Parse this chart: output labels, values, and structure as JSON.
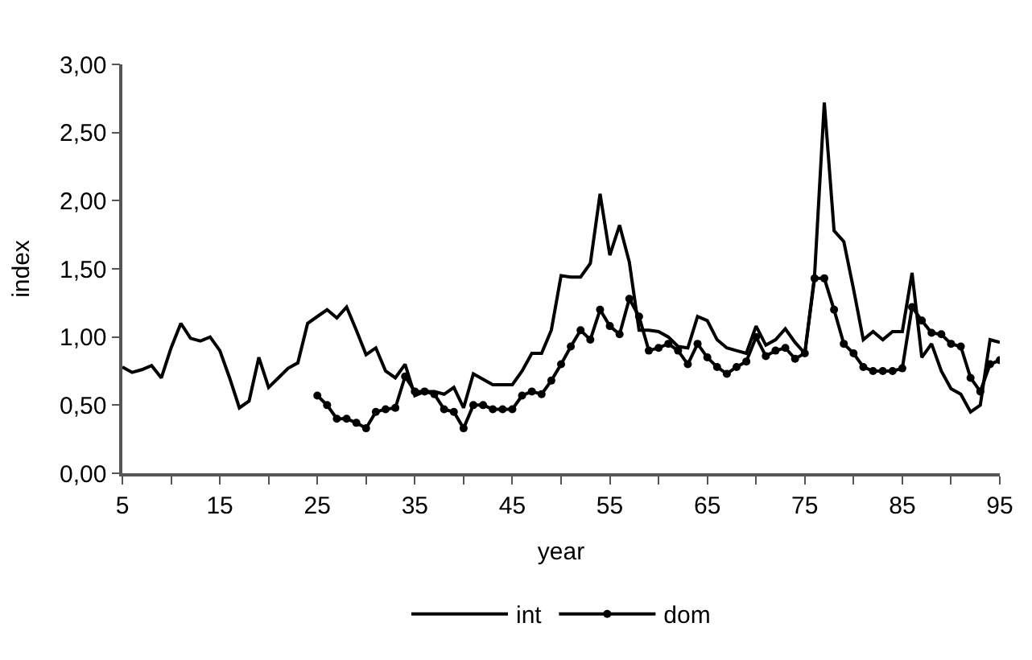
{
  "chart_data": {
    "type": "line",
    "xlabel": "year",
    "ylabel": "index",
    "x": [
      5,
      6,
      7,
      8,
      9,
      10,
      11,
      12,
      13,
      14,
      15,
      16,
      17,
      18,
      19,
      20,
      21,
      22,
      23,
      24,
      25,
      26,
      27,
      28,
      29,
      30,
      31,
      32,
      33,
      34,
      35,
      36,
      37,
      38,
      39,
      40,
      41,
      42,
      43,
      44,
      45,
      46,
      47,
      48,
      49,
      50,
      51,
      52,
      53,
      54,
      55,
      56,
      57,
      58,
      59,
      60,
      61,
      62,
      63,
      64,
      65,
      66,
      67,
      68,
      69,
      70,
      71,
      72,
      73,
      74,
      75,
      76,
      77,
      78,
      79,
      80,
      81,
      82,
      83,
      84,
      85,
      86,
      87,
      88,
      89,
      90,
      91,
      92,
      93,
      94,
      95
    ],
    "series": [
      {
        "name": "int",
        "color": "#000000",
        "marker": "none",
        "values": [
          0.78,
          0.74,
          0.76,
          0.79,
          0.7,
          0.92,
          1.1,
          0.99,
          0.97,
          1.0,
          0.9,
          0.7,
          0.48,
          0.53,
          0.85,
          0.63,
          0.7,
          0.77,
          0.81,
          1.1,
          1.15,
          1.2,
          1.14,
          1.22,
          1.05,
          0.87,
          0.92,
          0.75,
          0.7,
          0.8,
          0.57,
          0.6,
          0.6,
          0.58,
          0.63,
          0.48,
          0.73,
          0.69,
          0.65,
          0.65,
          0.65,
          0.75,
          0.88,
          0.88,
          1.05,
          1.45,
          1.44,
          1.44,
          1.54,
          2.05,
          1.6,
          1.82,
          1.55,
          1.05,
          1.05,
          1.04,
          1.0,
          0.93,
          0.92,
          1.15,
          1.12,
          0.98,
          0.92,
          0.9,
          0.88,
          1.08,
          0.94,
          0.98,
          1.06,
          0.96,
          0.88,
          1.45,
          2.72,
          1.78,
          1.7,
          1.35,
          0.98,
          1.04,
          0.98,
          1.04,
          1.04,
          1.47,
          0.85,
          0.95,
          0.75,
          0.62,
          0.58,
          0.45,
          0.5,
          0.98,
          0.96
        ]
      },
      {
        "name": "dom",
        "color": "#000000",
        "marker": "circle",
        "values": [
          null,
          null,
          null,
          null,
          null,
          null,
          null,
          null,
          null,
          null,
          null,
          null,
          null,
          null,
          null,
          null,
          null,
          null,
          null,
          null,
          0.57,
          0.5,
          0.4,
          0.4,
          0.37,
          0.33,
          0.45,
          0.47,
          0.48,
          0.71,
          0.6,
          0.6,
          0.58,
          0.47,
          0.45,
          0.33,
          0.5,
          0.5,
          0.47,
          0.47,
          0.47,
          0.57,
          0.6,
          0.58,
          0.68,
          0.8,
          0.93,
          1.05,
          0.98,
          1.2,
          1.08,
          1.02,
          1.28,
          1.15,
          0.9,
          0.92,
          0.95,
          0.9,
          0.8,
          0.95,
          0.85,
          0.78,
          0.73,
          0.78,
          0.82,
          1.0,
          0.86,
          0.9,
          0.92,
          0.84,
          0.88,
          1.43,
          1.43,
          1.2,
          0.95,
          0.88,
          0.78,
          0.75,
          0.75,
          0.75,
          0.77,
          1.22,
          1.12,
          1.03,
          1.02,
          0.95,
          0.93,
          0.7,
          0.6,
          0.8,
          0.83
        ]
      }
    ],
    "xlim": [
      5,
      95
    ],
    "xticks": [
      5,
      {
        "value": 10,
        "label": null
      },
      15,
      {
        "value": 20,
        "label": null
      },
      25,
      {
        "value": 30,
        "label": null
      },
      35,
      {
        "value": 40,
        "label": null
      },
      45,
      {
        "value": 50,
        "label": null
      },
      55,
      {
        "value": 60,
        "label": null
      },
      65,
      {
        "value": 70,
        "label": null
      },
      75,
      {
        "value": 80,
        "label": null
      },
      85,
      {
        "value": 90,
        "label": null
      },
      95
    ],
    "ylim": [
      0,
      3
    ],
    "yticks": [
      {
        "value": 0,
        "label": "0,00"
      },
      {
        "value": 0.5,
        "label": "0,50"
      },
      {
        "value": 1,
        "label": "1,00"
      },
      {
        "value": 1.5,
        "label": "1,50"
      },
      {
        "value": 2,
        "label": "2,00"
      },
      {
        "value": 2.5,
        "label": "2,50"
      },
      {
        "value": 3,
        "label": "3,00"
      }
    ],
    "grid": false,
    "legend": "bottom"
  }
}
